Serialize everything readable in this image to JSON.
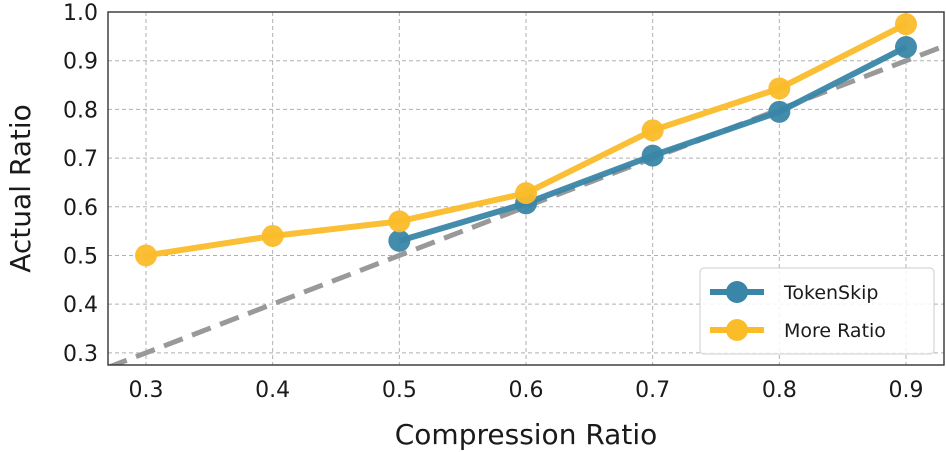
{
  "chart_data": {
    "type": "line",
    "title": "",
    "xlabel": "Compression Ratio",
    "ylabel": "Actual Ratio",
    "xlim": [
      0.27,
      0.93
    ],
    "ylim": [
      0.275,
      1.0
    ],
    "xticks": [
      "0.3",
      "0.4",
      "0.5",
      "0.6",
      "0.7",
      "0.8",
      "0.9"
    ],
    "xtick_values": [
      0.3,
      0.4,
      0.5,
      0.6,
      0.7,
      0.8,
      0.9
    ],
    "yticks": [
      "0.3",
      "0.4",
      "0.5",
      "0.6",
      "0.7",
      "0.8",
      "0.9",
      "1.0"
    ],
    "ytick_values": [
      0.3,
      0.4,
      0.5,
      0.6,
      0.7,
      0.8,
      0.9,
      1.0
    ],
    "grid": true,
    "legend_position": "bottom-right",
    "series": [
      {
        "name": "TokenSkip",
        "color": "#3a86a8",
        "x": [
          0.5,
          0.6,
          0.7,
          0.8,
          0.9
        ],
        "y": [
          0.53,
          0.607,
          0.705,
          0.795,
          0.928
        ]
      },
      {
        "name": "More Ratio",
        "color": "#fbbc2a",
        "x": [
          0.3,
          0.4,
          0.5,
          0.6,
          0.7,
          0.8,
          0.9
        ],
        "y": [
          0.5,
          0.54,
          0.57,
          0.628,
          0.757,
          0.843,
          0.975
        ]
      }
    ],
    "reference_line": {
      "name": "y = x",
      "color": "#999999",
      "x": [
        0.27,
        0.93
      ],
      "y": [
        0.27,
        0.93
      ]
    }
  }
}
